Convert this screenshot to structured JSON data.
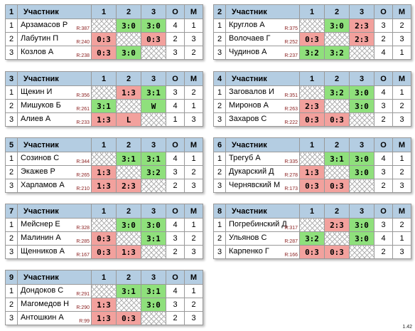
{
  "header": {
    "participant": "Участник",
    "c1": "1",
    "c2": "2",
    "c3": "3",
    "pts": "О",
    "place": "М"
  },
  "groups": [
    {
      "num": "1",
      "players": [
        {
          "i": "1",
          "name": "Арзамасов Р",
          "rating": "R:387",
          "res": [
            "",
            "3:0",
            "3:0"
          ],
          "pts": "4",
          "place": "1"
        },
        {
          "i": "2",
          "name": "Лабутин П",
          "rating": "R:240",
          "res": [
            "0:3",
            "",
            "0:3"
          ],
          "pts": "2",
          "place": "3"
        },
        {
          "i": "3",
          "name": "Козлов А",
          "rating": "R:238",
          "res": [
            "0:3",
            "3:0",
            ""
          ],
          "pts": "3",
          "place": "2"
        }
      ]
    },
    {
      "num": "2",
      "players": [
        {
          "i": "1",
          "name": "Круглов А",
          "rating": "R:375",
          "res": [
            "",
            "3:0",
            "2:3"
          ],
          "pts": "3",
          "place": "2"
        },
        {
          "i": "2",
          "name": "Волочаев Г",
          "rating": "R:252",
          "res": [
            "0:3",
            "",
            "2:3"
          ],
          "pts": "2",
          "place": "3"
        },
        {
          "i": "3",
          "name": "Чудинов А",
          "rating": "R:237",
          "res": [
            "3:2",
            "3:2",
            ""
          ],
          "pts": "4",
          "place": "1"
        }
      ]
    },
    {
      "num": "3",
      "players": [
        {
          "i": "1",
          "name": "Щекин И",
          "rating": "R:356",
          "res": [
            "",
            "1:3",
            "3:1"
          ],
          "pts": "3",
          "place": "2"
        },
        {
          "i": "2",
          "name": "Мишуков Б",
          "rating": "R:261",
          "res": [
            "3:1",
            "",
            "W"
          ],
          "pts": "4",
          "place": "1"
        },
        {
          "i": "3",
          "name": "Алиев А",
          "rating": "R:233",
          "res": [
            "1:3",
            "L",
            ""
          ],
          "pts": "1",
          "place": "3"
        }
      ]
    },
    {
      "num": "4",
      "players": [
        {
          "i": "1",
          "name": "Заговалов И",
          "rating": "R:351",
          "res": [
            "",
            "3:2",
            "3:0"
          ],
          "pts": "4",
          "place": "1"
        },
        {
          "i": "2",
          "name": "Миронов А",
          "rating": "R:263",
          "res": [
            "2:3",
            "",
            "3:0"
          ],
          "pts": "3",
          "place": "2"
        },
        {
          "i": "3",
          "name": "Захаров С",
          "rating": "R:222",
          "res": [
            "0:3",
            "0:3",
            ""
          ],
          "pts": "2",
          "place": "3"
        }
      ]
    },
    {
      "num": "5",
      "players": [
        {
          "i": "1",
          "name": "Созинов С",
          "rating": "R:344",
          "res": [
            "",
            "3:1",
            "3:1"
          ],
          "pts": "4",
          "place": "1"
        },
        {
          "i": "2",
          "name": "Экажев Р",
          "rating": "R:265",
          "res": [
            "1:3",
            "",
            "3:2"
          ],
          "pts": "3",
          "place": "2"
        },
        {
          "i": "3",
          "name": "Харламов А",
          "rating": "R:210",
          "res": [
            "1:3",
            "2:3",
            ""
          ],
          "pts": "2",
          "place": "3"
        }
      ]
    },
    {
      "num": "6",
      "players": [
        {
          "i": "1",
          "name": "Трегуб А",
          "rating": "R:335",
          "res": [
            "",
            "3:1",
            "3:0"
          ],
          "pts": "4",
          "place": "1"
        },
        {
          "i": "2",
          "name": "Дукарский Д",
          "rating": "R:278",
          "res": [
            "1:3",
            "",
            "3:0"
          ],
          "pts": "3",
          "place": "2"
        },
        {
          "i": "3",
          "name": "Чернявский М",
          "rating": "R:173",
          "res": [
            "0:3",
            "0:3",
            ""
          ],
          "pts": "2",
          "place": "3"
        }
      ]
    },
    {
      "num": "7",
      "players": [
        {
          "i": "1",
          "name": "Мейснер Е",
          "rating": "R:328",
          "res": [
            "",
            "3:0",
            "3:0"
          ],
          "pts": "4",
          "place": "1"
        },
        {
          "i": "2",
          "name": "Малинин А",
          "rating": "R:285",
          "res": [
            "0:3",
            "",
            "3:1"
          ],
          "pts": "3",
          "place": "2"
        },
        {
          "i": "3",
          "name": "Щенников А",
          "rating": "R:167",
          "res": [
            "0:3",
            "1:3",
            ""
          ],
          "pts": "2",
          "place": "3"
        }
      ]
    },
    {
      "num": "8",
      "players": [
        {
          "i": "1",
          "name": "Погребинский Д",
          "rating": "R:317",
          "res": [
            "",
            "2:3",
            "3:0"
          ],
          "pts": "3",
          "place": "2"
        },
        {
          "i": "2",
          "name": "Ульянов С",
          "rating": "R:287",
          "res": [
            "3:2",
            "",
            "3:0"
          ],
          "pts": "4",
          "place": "1"
        },
        {
          "i": "3",
          "name": "Карпенко Г",
          "rating": "R:166",
          "res": [
            "0:3",
            "0:3",
            ""
          ],
          "pts": "2",
          "place": "3"
        }
      ]
    },
    {
      "num": "9",
      "players": [
        {
          "i": "1",
          "name": "Дондоков С",
          "rating": "R:291",
          "res": [
            "",
            "3:1",
            "3:1"
          ],
          "pts": "4",
          "place": "1"
        },
        {
          "i": "2",
          "name": "Магомедов Н",
          "rating": "R:290",
          "res": [
            "1:3",
            "",
            "3:0"
          ],
          "pts": "3",
          "place": "2"
        },
        {
          "i": "3",
          "name": "Антошкин А",
          "rating": "R:99",
          "res": [
            "1:3",
            "0:3",
            ""
          ],
          "pts": "2",
          "place": "3"
        }
      ]
    }
  ],
  "version": "1.42",
  "colors": {
    "header": "#b4cde2",
    "win": "#8fe07c",
    "loss": "#f2a19d"
  }
}
